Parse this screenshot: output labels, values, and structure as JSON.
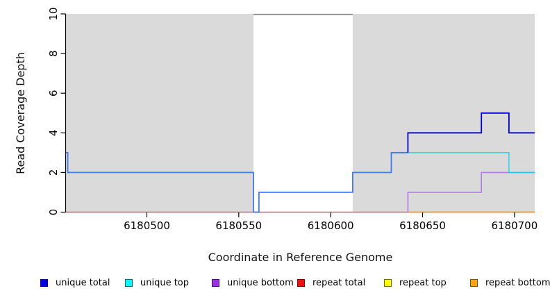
{
  "figure": {
    "x_axis_title": "Coordinate in Reference Genome",
    "y_axis_title": "Read Coverage Depth"
  },
  "legend": {
    "items": [
      {
        "label": "unique total",
        "fill": "#0000E8",
        "border": "#00008B"
      },
      {
        "label": "unique top",
        "fill": "#00FFFF",
        "border": "#00666E"
      },
      {
        "label": "unique bottom",
        "fill": "#9A30E8",
        "border": "#4B0082"
      },
      {
        "label": "repeat total",
        "fill": "#EE1111",
        "border": "#7A0000"
      },
      {
        "label": "repeat top",
        "fill": "#FFFF00",
        "border": "#6E6E00"
      },
      {
        "label": "repeat bottom",
        "fill": "#FFA510",
        "border": "#7A5200"
      }
    ]
  },
  "chart_data": {
    "type": "line",
    "title": "",
    "xlabel": "Coordinate in Reference Genome",
    "ylabel": "Read Coverage Depth",
    "xlim": [
      6180456,
      6180711
    ],
    "ylim": [
      0,
      10
    ],
    "x_ticks": [
      6180500,
      6180550,
      6180600,
      6180650,
      6180700
    ],
    "y_ticks": [
      0,
      2,
      4,
      6,
      8,
      10
    ],
    "grid": false,
    "legend_position": "bottom",
    "background_regions": [
      {
        "name": "shaded-left",
        "x0": 6180456,
        "x1": 6180558,
        "fill": "#DADADA"
      },
      {
        "name": "gap-white",
        "x0": 6180558,
        "x1": 6180612,
        "fill": "#FFFFFF",
        "top_border": "#808080"
      },
      {
        "name": "shaded-right",
        "x0": 6180612,
        "x1": 6180711,
        "fill": "#DADADA"
      }
    ],
    "series": [
      {
        "name": "repeat total",
        "stroke_width": 1.5,
        "segments": [
          {
            "color": "#D5607C",
            "points": [
              [
                6180456,
                0
              ],
              [
                6180711,
                0
              ]
            ]
          }
        ]
      },
      {
        "name": "repeat bottom",
        "stroke_width": 1.6,
        "segments": [
          {
            "color": "#FF9E00",
            "points": [
              [
                6180642,
                0
              ],
              [
                6180711,
                0
              ]
            ]
          }
        ]
      },
      {
        "name": "repeat top",
        "stroke_width": 1.5,
        "segments": []
      },
      {
        "name": "unique bottom",
        "stroke_width": 1.6,
        "segments": [
          {
            "color": "#AF7CE3",
            "points": [
              [
                6180642,
                0
              ],
              [
                6180642,
                1
              ],
              [
                6180682,
                1
              ],
              [
                6180682,
                2
              ],
              [
                6180711,
                2
              ]
            ]
          }
        ]
      },
      {
        "name": "unique top",
        "stroke_width": 1.6,
        "opacity": 0.8,
        "segments": [
          {
            "color": "#00D8E8",
            "points": [
              [
                6180642,
                3
              ],
              [
                6180697,
                3
              ],
              [
                6180697,
                2
              ],
              [
                6180711,
                2
              ]
            ]
          }
        ]
      },
      {
        "name": "unique total",
        "stroke_width": 1.8,
        "segments": [
          {
            "color": "#4179E8",
            "points": [
              [
                6180456,
                3
              ],
              [
                6180457,
                3
              ],
              [
                6180457,
                2
              ],
              [
                6180558,
                2
              ],
              [
                6180558,
                0
              ],
              [
                6180561,
                0
              ],
              [
                6180561,
                1
              ],
              [
                6180612,
                1
              ],
              [
                6180612,
                2
              ],
              [
                6180633,
                2
              ],
              [
                6180633,
                3
              ],
              [
                6180642,
                3
              ]
            ]
          },
          {
            "color": "#0000CD",
            "points": [
              [
                6180642,
                3
              ],
              [
                6180642,
                4
              ],
              [
                6180682,
                4
              ],
              [
                6180682,
                5
              ],
              [
                6180697,
                5
              ],
              [
                6180697,
                4
              ],
              [
                6180711,
                4
              ]
            ]
          }
        ]
      }
    ]
  }
}
